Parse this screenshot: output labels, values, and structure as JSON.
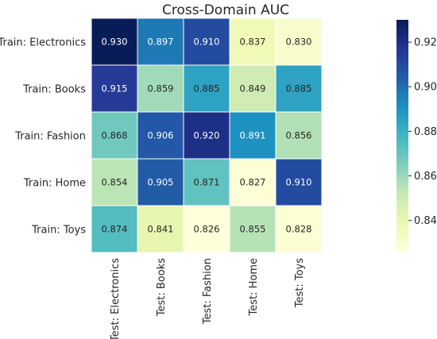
{
  "chart_data": {
    "type": "heatmap",
    "title": "Cross-Domain AUC",
    "rows": [
      "Train: Electronics",
      "Train: Books",
      "Train: Fashion",
      "Train: Home",
      "Train: Toys"
    ],
    "cols": [
      "Test: Electronics",
      "Test: Books",
      "Test: Fashion",
      "Test: Home",
      "Test: Toys"
    ],
    "values": [
      [
        0.93,
        0.897,
        0.91,
        0.837,
        0.83
      ],
      [
        0.915,
        0.859,
        0.885,
        0.849,
        0.885
      ],
      [
        0.868,
        0.906,
        0.92,
        0.891,
        0.856
      ],
      [
        0.854,
        0.905,
        0.871,
        0.827,
        0.91
      ],
      [
        0.874,
        0.841,
        0.826,
        0.855,
        0.828
      ]
    ],
    "labels": [
      [
        "0.930",
        "0.897",
        "0.910",
        "0.837",
        "0.830"
      ],
      [
        "0.915",
        "0.859",
        "0.885",
        "0.849",
        "0.885"
      ],
      [
        "0.868",
        "0.906",
        "0.920",
        "0.891",
        "0.856"
      ],
      [
        "0.854",
        "0.905",
        "0.871",
        "0.827",
        "0.910"
      ],
      [
        "0.874",
        "0.841",
        "0.826",
        "0.855",
        "0.828"
      ]
    ],
    "colormap": "YlGnBu",
    "vmin": 0.826,
    "vmax": 0.93,
    "colorbar_ticks": [
      "0.84",
      "0.86",
      "0.88",
      "0.90",
      "0.92"
    ],
    "colorbar_tick_values": [
      0.84,
      0.86,
      0.88,
      0.9,
      0.92
    ],
    "grid_lines": "white",
    "legend": "colorbar-right"
  }
}
